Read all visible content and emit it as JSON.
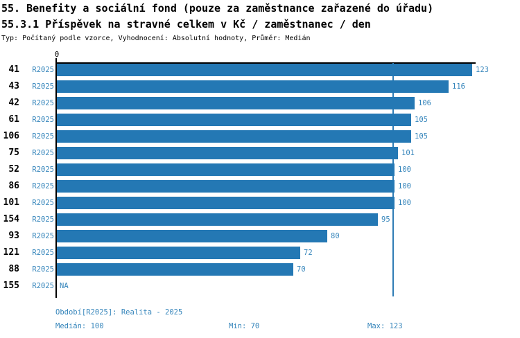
{
  "header": {
    "title_line1": "55. Benefity a sociální fond (pouze za zaměstnance zařazené do úřadu)",
    "title_line2": "55.3.1 Příspěvek na stravné celkem v Kč / zaměstnanec / den",
    "meta_line": "Typ: Počítaný podle vzorce, Vyhodnocení: Absolutní hodnoty, Průměr: Medián"
  },
  "chart_data": {
    "type": "bar",
    "orientation": "horizontal",
    "title": "55.3.1 Příspěvek na stravné celkem v Kč / zaměstnanec / den",
    "xlabel": "",
    "ylabel": "",
    "x_axis": {
      "tick_label": "0",
      "min": 0,
      "max": 124,
      "grid": false
    },
    "median_reference_line": 100,
    "na_text": "NA",
    "categories": [
      "41",
      "43",
      "42",
      "61",
      "106",
      "75",
      "52",
      "86",
      "101",
      "154",
      "93",
      "121",
      "88",
      "155"
    ],
    "series": [
      {
        "name": "R2025",
        "values": [
          123,
          116,
          106,
          105,
          105,
          101,
          100,
          100,
          100,
          95,
          80,
          72,
          70,
          null
        ]
      }
    ],
    "rows": [
      {
        "id": "41",
        "period": "R2025",
        "value": 123,
        "value_label": "123"
      },
      {
        "id": "43",
        "period": "R2025",
        "value": 116,
        "value_label": "116"
      },
      {
        "id": "42",
        "period": "R2025",
        "value": 106,
        "value_label": "106"
      },
      {
        "id": "61",
        "period": "R2025",
        "value": 105,
        "value_label": "105"
      },
      {
        "id": "106",
        "period": "R2025",
        "value": 105,
        "value_label": "105"
      },
      {
        "id": "75",
        "period": "R2025",
        "value": 101,
        "value_label": "101"
      },
      {
        "id": "52",
        "period": "R2025",
        "value": 100,
        "value_label": "100"
      },
      {
        "id": "86",
        "period": "R2025",
        "value": 100,
        "value_label": "100"
      },
      {
        "id": "101",
        "period": "R2025",
        "value": 100,
        "value_label": "100"
      },
      {
        "id": "154",
        "period": "R2025",
        "value": 95,
        "value_label": "95"
      },
      {
        "id": "93",
        "period": "R2025",
        "value": 80,
        "value_label": "80"
      },
      {
        "id": "121",
        "period": "R2025",
        "value": 72,
        "value_label": "72"
      },
      {
        "id": "88",
        "period": "R2025",
        "value": 70,
        "value_label": "70"
      },
      {
        "id": "155",
        "period": "R2025",
        "value": null,
        "value_label": "NA"
      }
    ],
    "colors": {
      "bar": "#2478b4",
      "text_blue": "#3585bb",
      "median_line": "#2e7cb5",
      "axis": "#000000"
    }
  },
  "footer": {
    "period_label": "Období[R2025]: Realita - 2025",
    "median_label": "Medián: 100",
    "min_label": "Min: 70",
    "max_label": "Max: 123"
  }
}
